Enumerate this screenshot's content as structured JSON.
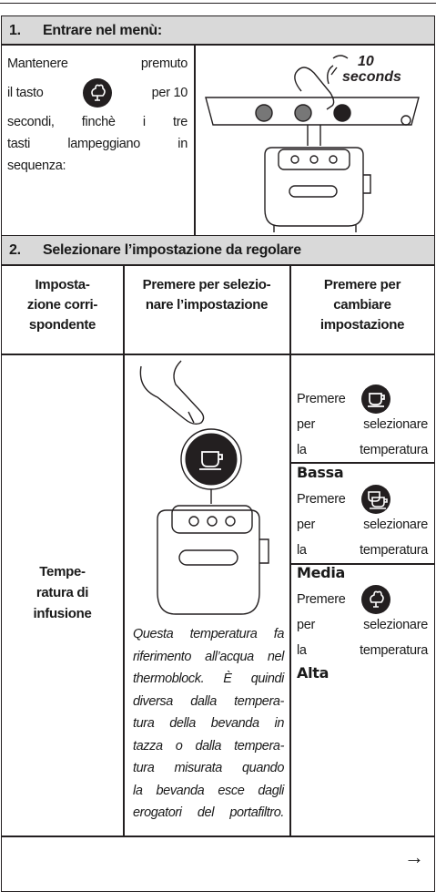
{
  "section1": {
    "number": "1.",
    "title": "Entrare nel menù:",
    "text_lines": [
      "Mantenere premuto",
      "il tasto",
      "per 10",
      "secondi, finchè i tre",
      "tasti lampeggiano in",
      "sequenza:"
    ],
    "image_label_lines": [
      "10",
      "seconds"
    ]
  },
  "section2": {
    "number": "2.",
    "title": "Selezionare l’impostazione da regolare",
    "headers": [
      [
        "Imposta-",
        "zione corri-",
        "spondente"
      ],
      [
        "Premere per selezio-",
        "nare l’impostazione"
      ],
      [
        "Premere per",
        "cambiare",
        "impostazione"
      ]
    ],
    "row_label": [
      "Tempe-",
      "ratura di",
      "infusione"
    ],
    "note_lines": [
      "Questa temperatura fa",
      "riferimento all’acqua nel",
      "thermoblock. È quindi",
      "diversa dalla tempera-",
      "tura della bevanda in",
      "tazza o dalla tempera-",
      "tura misurata quando",
      "la bevanda esce dagli",
      "erogatori del portafiltro."
    ],
    "options": [
      {
        "lines": [
          "Premere",
          "per selezionare",
          "la temperatura"
        ],
        "level": "Bassa"
      },
      {
        "lines": [
          "Premere",
          "per selezionare",
          "la temperatura"
        ],
        "level": "Media"
      },
      {
        "lines": [
          "Premere",
          "per selezionare",
          "la temperatura"
        ],
        "level": "Alta"
      }
    ]
  },
  "footer": {
    "arrow": "→"
  }
}
